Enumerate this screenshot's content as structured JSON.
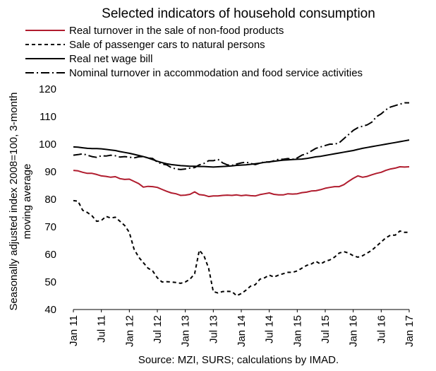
{
  "chart_data": {
    "type": "line",
    "title": "Selected indicators of household consumption",
    "ylabel_line1": "Seasonally adjusted index 2008=100, 3-month",
    "ylabel_line2": "moving average",
    "xlabel": "",
    "source": "Source: MZI, SURS; calculations by IMAD.",
    "ylim": [
      40,
      120
    ],
    "yticks": [
      "40",
      "50",
      "60",
      "70",
      "80",
      "90",
      "100",
      "110",
      "120"
    ],
    "xlim": [
      0,
      72
    ],
    "xticks": [
      {
        "x": 0,
        "label": "Jan 11"
      },
      {
        "x": 6,
        "label": "Jul 11"
      },
      {
        "x": 12,
        "label": "Jan 12"
      },
      {
        "x": 18,
        "label": "Jul 12"
      },
      {
        "x": 24,
        "label": "Jan 13"
      },
      {
        "x": 30,
        "label": "Jul 13"
      },
      {
        "x": 36,
        "label": "Jan 14"
      },
      {
        "x": 42,
        "label": "Jul 14"
      },
      {
        "x": 48,
        "label": "Jan 15"
      },
      {
        "x": 54,
        "label": "Jul 15"
      },
      {
        "x": 60,
        "label": "Jan 16"
      },
      {
        "x": 66,
        "label": "Jul 16"
      },
      {
        "x": 72,
        "label": "Jan 17"
      }
    ],
    "grid": false,
    "legend_position": "top",
    "series": [
      {
        "name": "Real turnover in the sale of non-food products",
        "color": "#b01c2e",
        "dash": "solid",
        "start": "Jan 11",
        "values": [
          90.5,
          90.3,
          89.8,
          89.4,
          89.4,
          89.0,
          88.5,
          88.3,
          88.0,
          88.2,
          87.5,
          87.2,
          87.3,
          86.5,
          85.7,
          84.4,
          84.7,
          84.6,
          84.3,
          83.6,
          82.9,
          82.3,
          82.0,
          81.4,
          81.5,
          81.8,
          82.7,
          81.7,
          81.5,
          81.0,
          81.2,
          81.2,
          81.4,
          81.5,
          81.4,
          81.6,
          81.3,
          81.5,
          81.3,
          81.2,
          81.7,
          82.0,
          82.3,
          81.8,
          81.6,
          81.6,
          82.0,
          81.9,
          82.0,
          82.4,
          82.6,
          83.0,
          83.1,
          83.5,
          84.0,
          84.3,
          84.6,
          84.6,
          85.3,
          86.5,
          87.6,
          88.5,
          88.0,
          88.3,
          88.9,
          89.4,
          89.8,
          90.5,
          91.0,
          91.3,
          91.8,
          91.7,
          91.8
        ]
      },
      {
        "name": "Sale of passenger cars to natural persons",
        "color": "#000000",
        "dash": "dashed",
        "start": "Jan 11",
        "values": [
          79.5,
          79.3,
          76.0,
          75.2,
          74.0,
          72.0,
          72.3,
          73.8,
          73.2,
          73.5,
          72.0,
          70.5,
          68.0,
          62.0,
          59.0,
          57.0,
          55.0,
          54.0,
          51.5,
          50.0,
          50.1,
          50.0,
          49.8,
          49.5,
          50.0,
          51.0,
          53.0,
          61.5,
          59.5,
          55.0,
          46.5,
          46.0,
          46.5,
          46.6,
          46.5,
          45.0,
          45.8,
          47.0,
          48.5,
          49.0,
          51.0,
          51.5,
          52.5,
          51.8,
          52.5,
          53.0,
          53.5,
          53.5,
          54.0,
          55.0,
          56.0,
          56.5,
          57.5,
          56.5,
          57.5,
          58.0,
          59.0,
          60.5,
          61.0,
          60.5,
          59.5,
          59.0,
          59.5,
          60.5,
          61.5,
          63.0,
          64.5,
          66.0,
          67.0,
          67.0,
          68.5,
          68.0,
          68.0
        ]
      },
      {
        "name": "Real net wage bill",
        "color": "#000000",
        "dash": "solid",
        "start": "Jan 11",
        "values": [
          99.0,
          98.9,
          98.7,
          98.5,
          98.4,
          98.4,
          98.3,
          98.1,
          97.9,
          97.7,
          97.3,
          97.0,
          96.7,
          96.3,
          95.9,
          95.5,
          95.0,
          94.4,
          93.8,
          93.3,
          92.9,
          92.6,
          92.4,
          92.2,
          92.1,
          92.0,
          92.0,
          91.9,
          91.9,
          91.8,
          91.7,
          91.8,
          91.9,
          92.0,
          92.1,
          92.3,
          92.4,
          92.5,
          92.7,
          92.9,
          93.1,
          93.4,
          93.6,
          93.8,
          94.0,
          94.2,
          94.3,
          94.4,
          94.5,
          94.6,
          94.8,
          95.1,
          95.4,
          95.6,
          95.9,
          96.2,
          96.5,
          96.8,
          97.1,
          97.4,
          97.7,
          98.1,
          98.5,
          98.8,
          99.1,
          99.4,
          99.7,
          100.0,
          100.3,
          100.6,
          100.9,
          101.2,
          101.5
        ]
      },
      {
        "name": "Nominal turnover in accommodation and food service activities",
        "color": "#000000",
        "dash": "dashdot",
        "start": "Jan 11",
        "values": [
          96.0,
          96.2,
          96.5,
          96.0,
          95.5,
          95.2,
          95.8,
          95.7,
          96.0,
          95.8,
          95.3,
          95.5,
          95.3,
          95.0,
          95.4,
          95.5,
          95.0,
          94.8,
          93.5,
          92.8,
          92.5,
          91.5,
          91.0,
          90.8,
          91.0,
          91.3,
          91.5,
          92.5,
          93.0,
          94.0,
          94.0,
          94.5,
          93.2,
          92.5,
          92.3,
          92.8,
          93.2,
          93.5,
          93.0,
          92.6,
          93.1,
          93.6,
          93.5,
          94.0,
          94.5,
          94.5,
          94.8,
          94.5,
          95.0,
          96.0,
          96.5,
          97.5,
          98.5,
          99.0,
          99.5,
          100.0,
          100.0,
          100.5,
          102.0,
          103.5,
          105.0,
          106.0,
          106.5,
          107.0,
          108.0,
          110.0,
          111.0,
          112.5,
          113.5,
          114.0,
          114.5,
          115.0,
          115.0
        ]
      }
    ]
  }
}
